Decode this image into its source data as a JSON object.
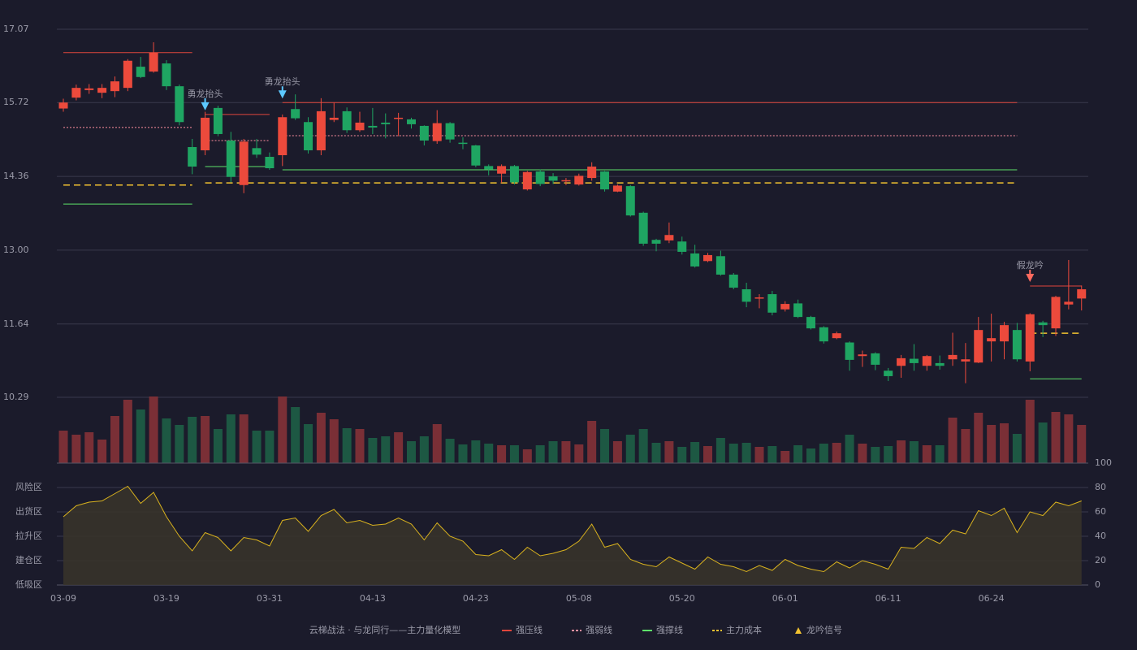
{
  "chart_data": {
    "type": "candlestick",
    "categories": [
      "03-09",
      null,
      null,
      null,
      null,
      null,
      null,
      null,
      "03-19",
      null,
      null,
      null,
      null,
      null,
      null,
      null,
      "03-31",
      null,
      null,
      null,
      null,
      null,
      null,
      null,
      "04-13",
      null,
      null,
      null,
      null,
      null,
      null,
      null,
      "04-23",
      null,
      null,
      null,
      null,
      null,
      null,
      null,
      "05-08",
      null,
      null,
      null,
      null,
      null,
      null,
      null,
      "05-20",
      null,
      null,
      null,
      null,
      null,
      null,
      null,
      "06-01",
      null,
      null,
      null,
      null,
      null,
      null,
      null,
      "06-11",
      null,
      null,
      null,
      null,
      null,
      null,
      null,
      "06-24",
      null,
      null,
      null,
      null,
      null,
      null,
      null
    ],
    "open": [
      15.61,
      15.81,
      15.95,
      15.9,
      15.93,
      15.99,
      16.38,
      16.29,
      16.44,
      16.02,
      14.9,
      14.84,
      15.62,
      15.02,
      14.2,
      14.88,
      14.72,
      14.75,
      15.6,
      15.36,
      14.84,
      15.4,
      15.56,
      15.21,
      15.29,
      15.35,
      15.42,
      15.41,
      15.29,
      15.01,
      15.34,
      14.98,
      14.93,
      14.55,
      14.41,
      14.55,
      14.12,
      14.45,
      14.36,
      14.27,
      14.21,
      14.33,
      14.45,
      14.08,
      14.18,
      13.69,
      13.19,
      13.18,
      13.16,
      12.94,
      12.8,
      12.89,
      12.55,
      12.28,
      12.11,
      12.19,
      11.91,
      12.02,
      11.77,
      11.58,
      11.38,
      11.3,
      11.05,
      11.1,
      10.78,
      10.87,
      11.0,
      10.87,
      10.92,
      10.99,
      10.95,
      10.93,
      11.32,
      11.32,
      11.53,
      10.95,
      11.67,
      11.56,
      12.0,
      12.11
    ],
    "high": [
      15.79,
      16.05,
      16.06,
      16.06,
      16.2,
      16.52,
      16.56,
      16.83,
      16.5,
      16.05,
      15.05,
      15.55,
      15.66,
      15.18,
      15.05,
      15.05,
      14.8,
      15.5,
      15.87,
      15.45,
      15.8,
      15.72,
      15.63,
      15.55,
      15.62,
      15.52,
      15.53,
      15.44,
      15.3,
      15.58,
      15.36,
      15.08,
      14.94,
      14.58,
      14.58,
      14.57,
      14.46,
      14.49,
      14.42,
      14.33,
      14.41,
      14.62,
      14.46,
      14.21,
      14.2,
      13.71,
      13.21,
      13.51,
      13.25,
      13.1,
      12.95,
      12.99,
      12.58,
      12.4,
      12.19,
      12.25,
      12.06,
      12.09,
      11.79,
      11.6,
      11.5,
      11.32,
      11.15,
      11.12,
      10.83,
      11.07,
      11.27,
      11.07,
      11.06,
      11.48,
      11.29,
      11.77,
      11.83,
      11.68,
      11.66,
      11.84,
      11.7,
      12.16,
      12.82,
      12.35
    ],
    "low": [
      15.55,
      15.76,
      15.88,
      15.8,
      15.82,
      15.93,
      16.17,
      16.27,
      15.95,
      15.3,
      14.4,
      14.75,
      15.1,
      14.25,
      14.05,
      14.7,
      14.48,
      14.55,
      15.4,
      14.78,
      14.75,
      15.36,
      15.16,
      15.18,
      15.14,
      15.06,
      15.1,
      15.24,
      14.93,
      14.96,
      14.98,
      14.86,
      14.53,
      14.38,
      14.24,
      14.21,
      14.1,
      14.18,
      14.22,
      14.2,
      14.19,
      14.28,
      14.08,
      14.07,
      13.62,
      13.08,
      12.98,
      13.13,
      12.92,
      12.68,
      12.78,
      12.53,
      12.28,
      11.95,
      11.93,
      11.8,
      11.87,
      11.75,
      11.54,
      11.28,
      11.36,
      10.78,
      10.85,
      10.79,
      10.59,
      10.65,
      10.78,
      10.78,
      10.8,
      10.87,
      10.55,
      10.92,
      10.95,
      10.99,
      10.95,
      10.77,
      11.4,
      11.42,
      11.91,
      11.89
    ],
    "close": [
      15.72,
      15.99,
      15.98,
      15.99,
      16.11,
      16.49,
      16.19,
      16.64,
      16.02,
      15.36,
      14.54,
      15.44,
      15.14,
      14.35,
      15.0,
      14.76,
      14.51,
      15.45,
      15.43,
      14.84,
      15.56,
      15.44,
      15.21,
      15.35,
      15.26,
      15.32,
      15.44,
      15.32,
      15.02,
      15.34,
      15.04,
      14.96,
      14.56,
      14.49,
      14.55,
      14.25,
      14.44,
      14.22,
      14.28,
      14.29,
      14.37,
      14.54,
      14.12,
      14.19,
      13.64,
      13.12,
      13.12,
      13.28,
      12.97,
      12.7,
      12.91,
      12.55,
      12.31,
      12.05,
      12.13,
      11.85,
      12.01,
      11.77,
      11.56,
      11.32,
      11.47,
      10.98,
      11.08,
      10.89,
      10.68,
      11.01,
      10.92,
      11.05,
      10.87,
      11.07,
      10.99,
      11.53,
      11.38,
      11.62,
      10.99,
      11.82,
      11.62,
      12.14,
      12.05,
      12.28
    ],
    "up_color": "#ec4a3c",
    "down_color": "#1fa562",
    "ylim": [
      10.29,
      17.07
    ],
    "yticks": [
      17.07,
      15.72,
      14.36,
      {
        "value": 13,
        "label": "13.00"
      },
      11.64,
      10.29
    ],
    "grid": true,
    "levels": [
      {
        "name": "强压线",
        "color": "#e0463c",
        "style": "solid",
        "segments": [
          {
            "start": 0,
            "end": 10,
            "value": 16.64
          },
          {
            "start": 11,
            "end": 16,
            "value": 15.5
          },
          {
            "start": 17,
            "end": 74,
            "value": 15.72
          },
          {
            "start": 75,
            "end": 79,
            "value": 12.34
          }
        ]
      },
      {
        "name": "强弱线",
        "color": "#ff8fa0",
        "style": "dotted",
        "segments": [
          {
            "start": 0,
            "end": 10,
            "value": 15.26
          },
          {
            "start": 11,
            "end": 16,
            "value": 15.02
          },
          {
            "start": 17,
            "end": 74,
            "value": 15.11
          }
        ]
      },
      {
        "name": "强撑线",
        "color": "#5ee26a",
        "style": "solid",
        "segments": [
          {
            "start": 0,
            "end": 10,
            "value": 13.85
          },
          {
            "start": 11,
            "end": 16,
            "value": 14.54
          },
          {
            "start": 17,
            "end": 74,
            "value": 14.48
          },
          {
            "start": 75,
            "end": 79,
            "value": 10.63
          }
        ]
      },
      {
        "name": "主力成本",
        "color": "#f2c230",
        "style": "dashed",
        "segments": [
          {
            "start": 0,
            "end": 10,
            "value": 14.2
          },
          {
            "start": 11,
            "end": 74,
            "value": 14.24
          },
          {
            "start": 75,
            "end": 79,
            "value": 11.47
          }
        ]
      }
    ],
    "signals": [
      {
        "index": 11,
        "label": "勇龙抬头",
        "color": "#5cc8ff"
      },
      {
        "index": 17,
        "label": "勇龙抬头",
        "color": "#5cc8ff"
      },
      {
        "index": 75,
        "label": "假龙吟",
        "color": "#ff6a5e"
      }
    ],
    "signal_legend": {
      "name": "龙吟信号",
      "color": "#f2c230"
    },
    "legend_title": "云梯战法 · 与龙同行——主力量化模型",
    "volume": {
      "type": "bar",
      "ylim": [
        0,
        82
      ],
      "values": [
        40,
        35,
        38,
        29,
        58,
        78,
        66,
        82,
        55,
        47,
        57,
        58,
        42,
        60,
        60,
        40,
        40,
        82,
        69,
        48,
        62,
        54,
        43,
        42,
        31,
        33,
        38,
        27,
        33,
        48,
        30,
        23,
        28,
        24,
        22,
        22,
        17,
        22,
        27,
        27,
        23,
        52,
        42,
        27,
        35,
        42,
        25,
        27,
        20,
        26,
        21,
        31,
        24,
        25,
        20,
        21,
        15,
        22,
        18,
        24,
        25,
        35,
        24,
        20,
        21,
        28,
        27,
        22,
        22,
        56,
        42,
        62,
        47,
        49,
        36,
        78,
        50,
        63,
        60,
        47
      ],
      "up_color": "#7a2f36",
      "down_color": "#1d5843"
    },
    "oscillator": {
      "type": "area",
      "color": "#d9b21e",
      "fill": "#38342a",
      "ylim": [
        0,
        100
      ],
      "yticks": [
        100,
        80,
        60,
        40,
        20,
        0
      ],
      "ytick_colors": [
        "#5ee26a",
        "#f0a030",
        "#e040fb",
        "#4a8fe8",
        "#ee4444",
        "#ee4444"
      ],
      "zones": [
        {
          "label": "风险区",
          "value": 80,
          "color": "#f0a030"
        },
        {
          "label": "出货区",
          "value": 60,
          "color": "#e040fb"
        },
        {
          "label": "拉升区",
          "value": 40,
          "color": "#4a8fe8"
        },
        {
          "label": "建仓区",
          "value": 20,
          "color": "#ee4444"
        },
        {
          "label": "低吸区",
          "value": 0,
          "color": "#ee4444"
        }
      ],
      "values": [
        56,
        65,
        68,
        69,
        75,
        81,
        67,
        76,
        56,
        40,
        28,
        43,
        39,
        28,
        39,
        37,
        32,
        53,
        55,
        44,
        57,
        62,
        51,
        53,
        49,
        50,
        55,
        50,
        37,
        51,
        40,
        36,
        25,
        24,
        29,
        21,
        31,
        24,
        26,
        29,
        36,
        50,
        31,
        34,
        21,
        17,
        15,
        23,
        18,
        13,
        23,
        17,
        15,
        11,
        16,
        12,
        21,
        16,
        13,
        11,
        19,
        14,
        20,
        17,
        13,
        31,
        30,
        39,
        34,
        45,
        42,
        61,
        57,
        63,
        43,
        60,
        57,
        68,
        65,
        69
      ]
    }
  }
}
